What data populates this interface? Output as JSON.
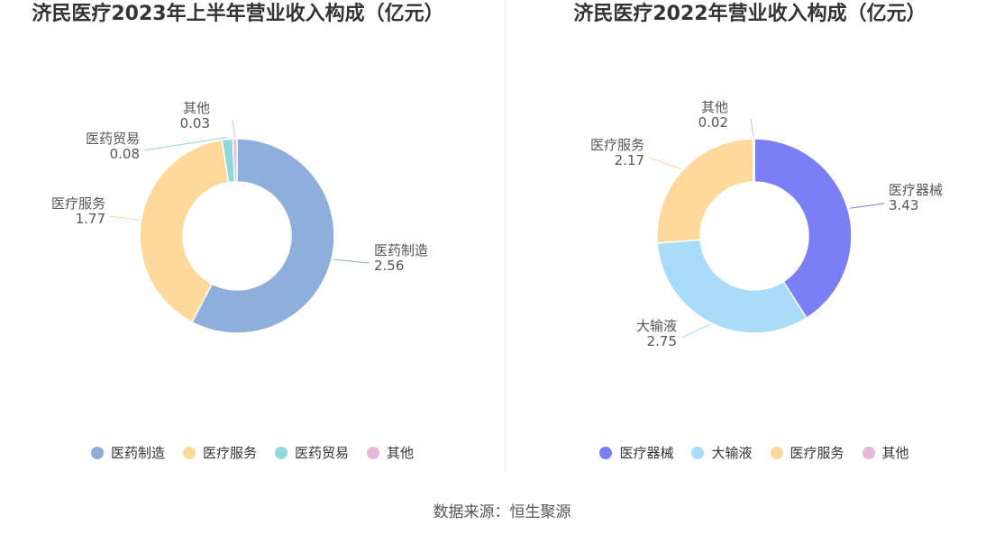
{
  "chart_data": [
    {
      "type": "pie",
      "title": "济民医疗2023年上半年营业收入构成（亿元）",
      "slices": [
        {
          "label": "医药制造",
          "value": 2.56,
          "value_text": "2.56",
          "color": "#8eaedb"
        },
        {
          "label": "医疗服务",
          "value": 1.77,
          "value_text": "1.77",
          "color": "#ffd89b"
        },
        {
          "label": "医药贸易",
          "value": 0.08,
          "value_text": "0.08",
          "color": "#8fd8dc"
        },
        {
          "label": "其他",
          "value": 0.03,
          "value_text": "0.03",
          "color": "#e8b8dc"
        }
      ],
      "legend_position": "bottom"
    },
    {
      "type": "pie",
      "title": "济民医疗2022年营业收入构成（亿元）",
      "slices": [
        {
          "label": "医疗器械",
          "value": 3.43,
          "value_text": "3.43",
          "color": "#7b7ff5"
        },
        {
          "label": "大输液",
          "value": 2.75,
          "value_text": "2.75",
          "color": "#a9dcf9"
        },
        {
          "label": "医疗服务",
          "value": 2.17,
          "value_text": "2.17",
          "color": "#ffd89b"
        },
        {
          "label": "其他",
          "value": 0.02,
          "value_text": "0.02",
          "color": "#e8b8dc"
        }
      ],
      "legend_position": "bottom"
    }
  ],
  "source": "数据来源：恒生聚源"
}
